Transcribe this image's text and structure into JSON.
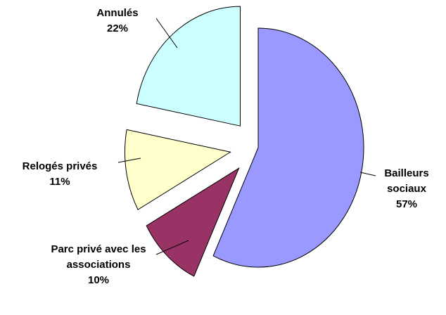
{
  "chart_data": {
    "type": "pie",
    "categories": [
      "Bailleurs sociaux",
      "Parc privé avec les associations",
      "Relogés privés",
      "Annulés"
    ],
    "values": [
      57,
      10,
      11,
      22
    ],
    "value_labels": [
      "57%",
      "10%",
      "11%",
      "22%"
    ],
    "colors": [
      "#9999ff",
      "#993366",
      "#ffffcc",
      "#ccffff"
    ]
  }
}
